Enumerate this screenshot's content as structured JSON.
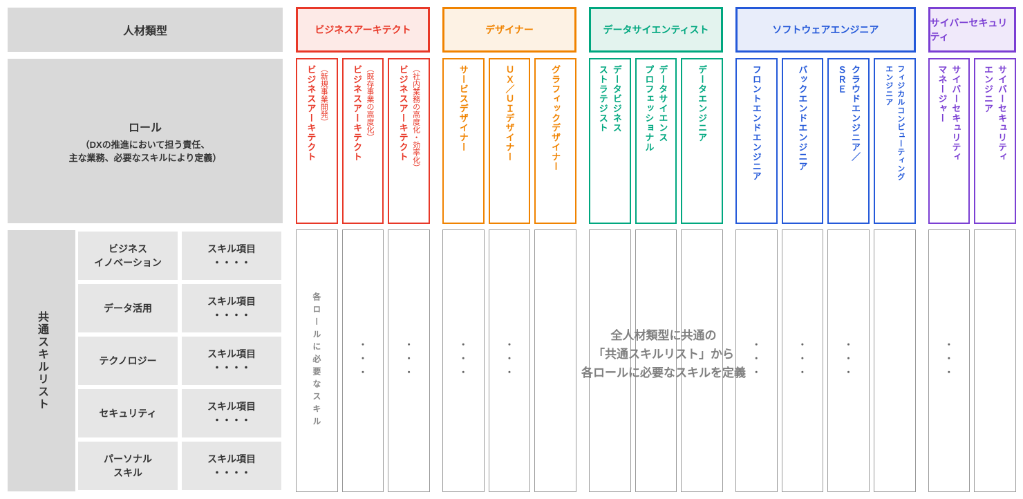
{
  "header": {
    "jinzai_label": "人材類型",
    "role_label": "ロール",
    "role_sub": "（DXの推進において担う責任、\n主な業務、必要なスキルにより定義）"
  },
  "categories": [
    {
      "id": "ba",
      "label": "ビジネスアーキテクト",
      "text_color": "#e83828",
      "border_color": "#e83828",
      "bg_color": "#fdeae7",
      "roles": [
        {
          "main": "ビジネスアーキテクト",
          "sub": "（新規事業開発）"
        },
        {
          "main": "ビジネスアーキテクト",
          "sub": "（既存事業の高度化）"
        },
        {
          "main": "ビジネスアーキテクト",
          "sub": "（社内業務の高度化・効率化）"
        }
      ]
    },
    {
      "id": "des",
      "label": "デザイナー",
      "text_color": "#f08300",
      "border_color": "#f08300",
      "bg_color": "#fdf2e4",
      "roles": [
        {
          "main": "サービスデザイナー",
          "sub": ""
        },
        {
          "main": "ＵＸ／ＵＩデザイナー",
          "sub": ""
        },
        {
          "main": "グラフィックデザイナー",
          "sub": ""
        }
      ]
    },
    {
      "id": "ds",
      "label": "データサイエンティスト",
      "text_color": "#00a77f",
      "border_color": "#00a77f",
      "bg_color": "#e3f3ee",
      "roles": [
        {
          "main": "データビジネス",
          "main2": "ストラテジスト",
          "sub": ""
        },
        {
          "main": "データサイエンス",
          "main2": "プロフェッショナル",
          "sub": ""
        },
        {
          "main": "データエンジニア",
          "sub": ""
        }
      ]
    },
    {
      "id": "se",
      "label": "ソフトウェアエンジニア",
      "text_color": "#2459d9",
      "border_color": "#2459d9",
      "bg_color": "#e8edfa",
      "roles": [
        {
          "main": "フロントエンドエンジニア",
          "sub": ""
        },
        {
          "main": "バックエンドエンジニア",
          "sub": ""
        },
        {
          "main": "クラウドエンジニア／",
          "main2": "ＳＲＥ",
          "sub": ""
        },
        {
          "main": "フィジカルコンピューティング",
          "main2": "エンジニア",
          "sub": "",
          "small": true
        }
      ]
    },
    {
      "id": "cs",
      "label": "サイバーセキュリティ",
      "text_color": "#7b3fd3",
      "border_color": "#7b3fd3",
      "bg_color": "#f0e9fa",
      "roles": [
        {
          "main": "サイバーセキュリティ",
          "main2": "マネージャー",
          "sub": ""
        },
        {
          "main": "サイバーセキュリティ",
          "main2": "エンジニア",
          "sub": ""
        }
      ]
    }
  ],
  "skill_list": {
    "side_label": "共通スキルリスト",
    "right_col_label": "スキル項目\n・・・・",
    "rows": [
      "ビジネス\nイノベーション",
      "データ活用",
      "テクノロジー",
      "セキュリティ",
      "パーソナル\nスキル"
    ],
    "first_col_text": "各ロールに必要なスキル",
    "dots": "・・・",
    "center_note": "全人材類型に共通の\n「共通スキルリスト」から\n各ロールに必要なスキルを定義"
  },
  "layout": {
    "row1_h": 66,
    "row2_h": 240,
    "row3_h": 380,
    "gap_v": 8
  }
}
